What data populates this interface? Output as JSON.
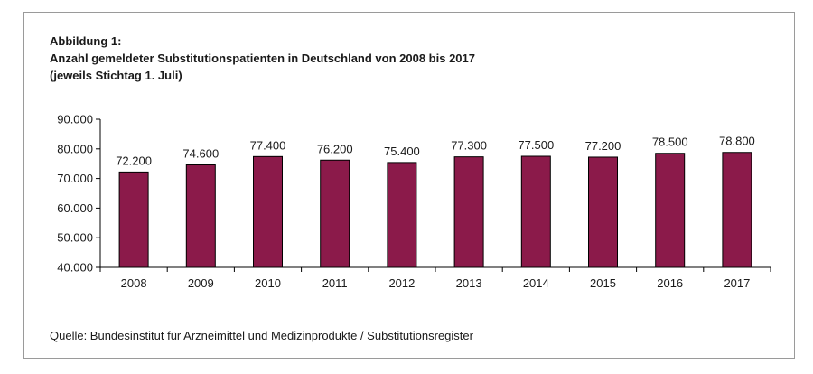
{
  "figure": {
    "label": "Abbildung 1:",
    "title": "Anzahl gemeldeter Substitutionspatienten in Deutschland von 2008 bis 2017",
    "subtitle": "(jeweils Stichtag 1. Juli)",
    "source": "Quelle: Bundesinstitut für Arzneimittel und Medizinprodukte / Substitutionsregister"
  },
  "chart_data": {
    "type": "bar",
    "title": "Anzahl gemeldeter Substitutionspatienten in Deutschland von 2008 bis 2017",
    "subtitle": "(jeweils Stichtag 1. Juli)",
    "categories": [
      "2008",
      "2009",
      "2010",
      "2011",
      "2012",
      "2013",
      "2014",
      "2015",
      "2016",
      "2017"
    ],
    "values": [
      72200,
      74600,
      77400,
      76200,
      75400,
      77300,
      77500,
      77200,
      78500,
      78800
    ],
    "data_labels": [
      "72.200",
      "74.600",
      "77.400",
      "76.200",
      "75.400",
      "77.300",
      "77.500",
      "77.200",
      "78.500",
      "78.800"
    ],
    "y_ticks": [
      40000,
      50000,
      60000,
      70000,
      80000,
      90000
    ],
    "y_tick_labels": [
      "40.000",
      "50.000",
      "60.000",
      "70.000",
      "80.000",
      "90.000"
    ],
    "ylim": [
      40000,
      90000
    ],
    "xlabel": "",
    "ylabel": "",
    "grid": false,
    "legend": "none",
    "bar_color": "#8b1a4a",
    "bar_stroke": "#000000"
  }
}
